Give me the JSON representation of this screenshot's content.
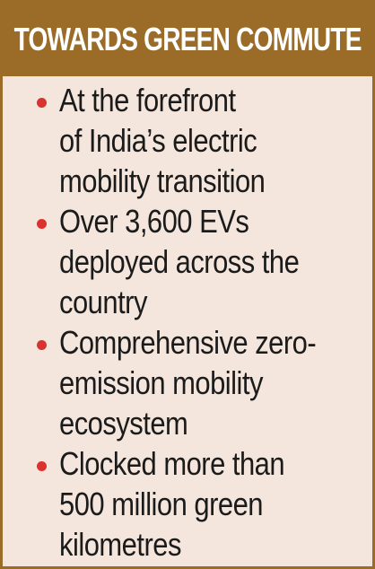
{
  "header": {
    "title": "TOWARDS GREEN COMMUTE"
  },
  "bullets": [
    {
      "lines": [
        "At the forefront",
        "of India’s electric",
        "mobility transition"
      ]
    },
    {
      "lines": [
        "Over 3,600 EVs",
        "deployed across the",
        "country"
      ]
    },
    {
      "lines": [
        "Comprehensive zero-",
        "emission mobility",
        "ecosystem"
      ]
    },
    {
      "lines": [
        "Clocked more than",
        "500 million green",
        "kilometres"
      ]
    }
  ],
  "colors": {
    "header_background": "#9a6c28",
    "card_background": "#f4e6dc",
    "bullet": "#d9322f",
    "text": "#1b1b1b"
  }
}
